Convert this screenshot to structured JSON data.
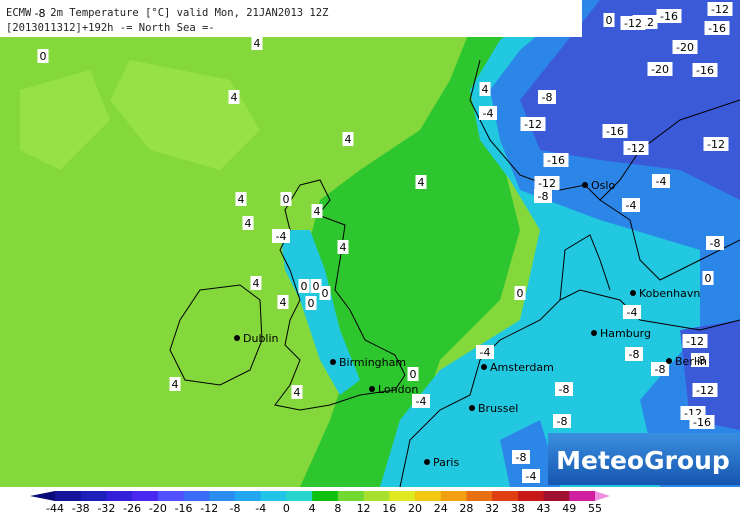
{
  "header": {
    "line1": "ECMWF: 2m Temperature [°C] valid Mon, 21JAN2013 12Z",
    "line2": "[2013011312]+192h -= North Sea =-"
  },
  "cities": [
    "Oslo",
    "Kobenhavn",
    "Hamburg",
    "Berlin",
    "Amsterdam",
    "London",
    "Birmingham",
    "Dublin",
    "Brussel",
    "Paris"
  ],
  "contour_labels": [
    -8,
    0,
    4,
    4,
    4,
    4,
    4,
    4,
    4,
    4,
    4,
    4,
    4,
    4,
    4,
    0,
    -4,
    0,
    0,
    0,
    0,
    0,
    0,
    0,
    -4,
    -4,
    -4,
    -4,
    -4,
    -4,
    -4,
    -8,
    -8,
    -8,
    -8,
    -8,
    -8,
    -8,
    -8,
    -8,
    -12,
    -12,
    -12,
    -12,
    -12,
    -12,
    -12,
    -16,
    -16,
    -16,
    -16,
    -12,
    -16,
    -12,
    0,
    -12,
    -20,
    -20,
    -16
  ],
  "logo": "MeteoGroup",
  "colorbar": {
    "ticks": [
      -44,
      -38,
      -32,
      -26,
      -20,
      -16,
      -12,
      -8,
      -4,
      0,
      4,
      8,
      12,
      16,
      20,
      24,
      28,
      32,
      38,
      43,
      49,
      55
    ],
    "colors": [
      "#0a0a78",
      "#14149a",
      "#1e1eb8",
      "#3420d8",
      "#4a28f0",
      "#5050ff",
      "#3a6cf8",
      "#2c8cf0",
      "#22a8ee",
      "#22c4e6",
      "#28d6d0",
      "#10c010",
      "#70d830",
      "#a8e030",
      "#e0e820",
      "#f0c810",
      "#f0a010",
      "#e87010",
      "#e04010",
      "#c81818",
      "#a01030",
      "#d020a0",
      "#f090e0"
    ]
  }
}
